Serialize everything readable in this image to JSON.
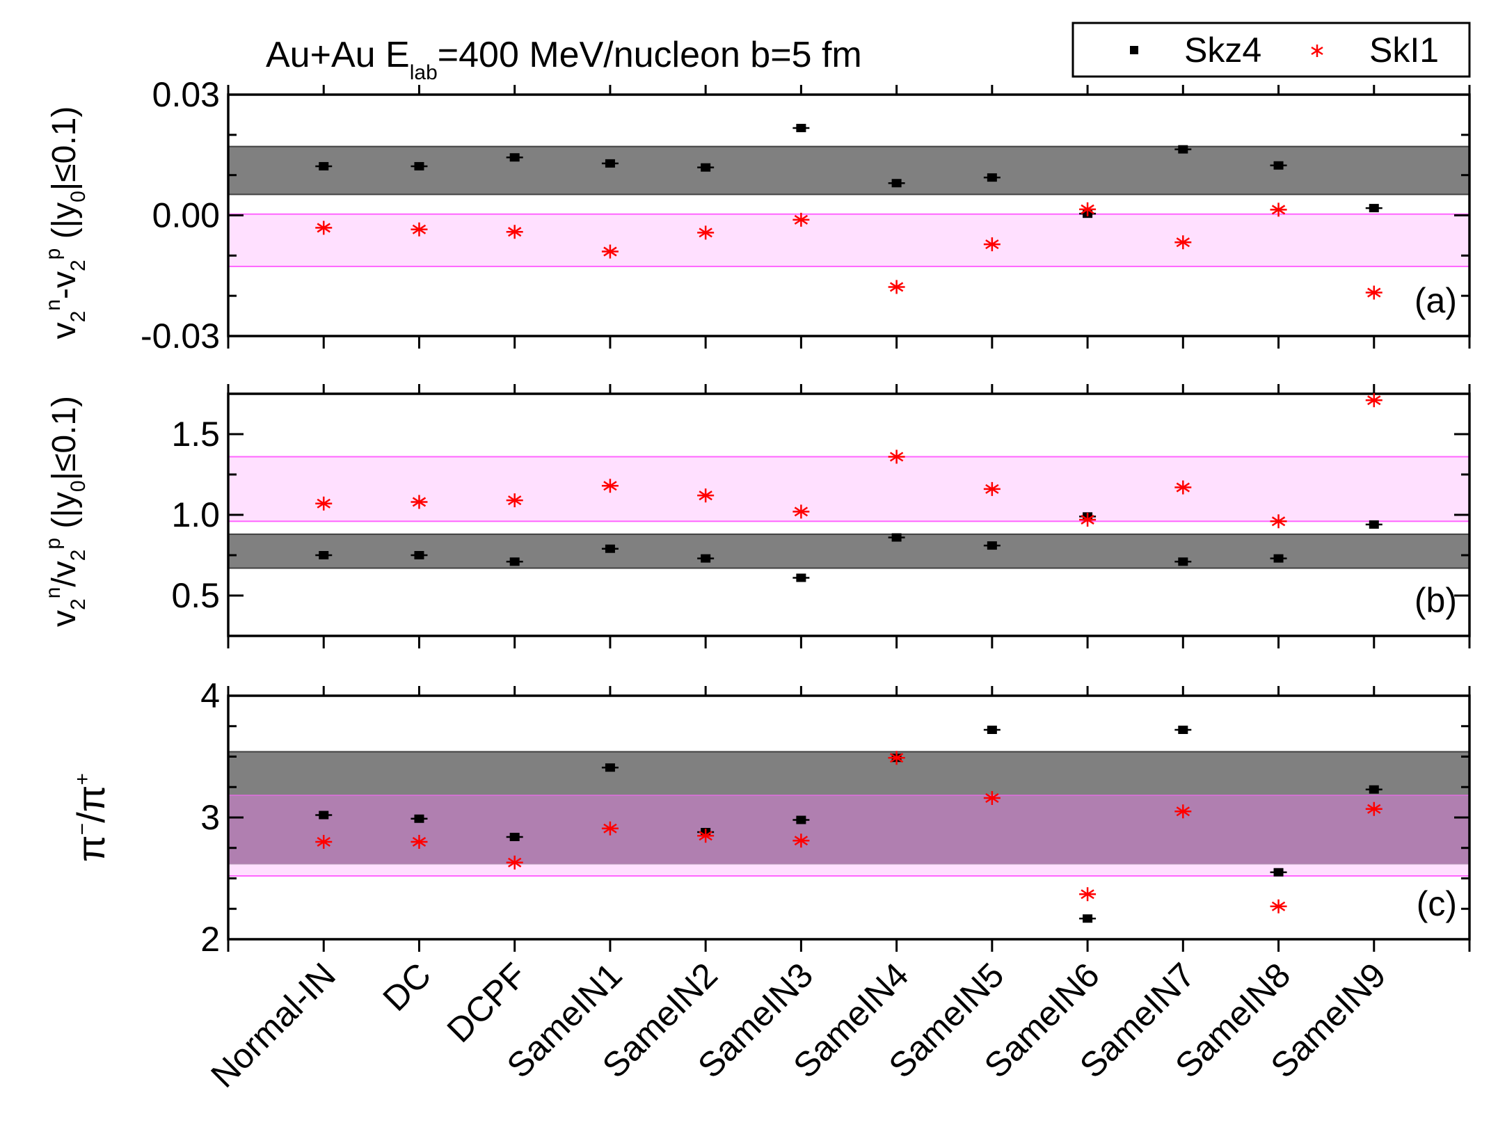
{
  "colors": {
    "skz4": "#000000",
    "skl1": "#ff0000",
    "band_gray": "#808080",
    "band_pink": "#ffccff",
    "band_pink_line": "#ff66ff",
    "band_overlap": "#b07fb0"
  },
  "chart_data": {
    "type": "scatter",
    "title": {
      "prefix": "Au+Au  E",
      "sub": "lab",
      "suffix": "=400 MeV/nucleon  b=5 fm"
    },
    "legend": {
      "placement": "top-right",
      "items": [
        {
          "name": "Skz4",
          "marker": "square",
          "color": "#000000"
        },
        {
          "name": "SkI1",
          "marker": "asterisk",
          "color": "#ff0000"
        }
      ]
    },
    "categories": [
      "Normal-IN",
      "DC",
      "DCPF",
      "SameIN1",
      "SameIN2",
      "SameIN3",
      "SameIN4",
      "SameIN5",
      "SameIN6",
      "SameIN7",
      "SameIN8",
      "SameIN9"
    ],
    "panels": [
      {
        "id": "a",
        "tag": "(a)",
        "ylabel": "v2n-v2p (|y0|≤0.1)",
        "ylabel_parts": {
          "v": "v",
          "sub2": "2",
          "supn": "n",
          "minus": "-v",
          "supp": "p",
          "rest1": " (|y",
          "sub0": "0",
          "rest2": "|≤0.1)"
        },
        "ylim": [
          -0.03,
          0.03
        ],
        "ticks": [
          -0.03,
          0.0,
          0.03
        ],
        "tick_labels": [
          "-0.03",
          "0.00",
          "0.03"
        ],
        "minor_step": 0.01,
        "bands": [
          {
            "series": "Skz4",
            "range": [
              0.0052,
              0.0171
            ],
            "color": "#808080"
          },
          {
            "series": "SkI1",
            "range": [
              -0.0127,
              0.0003
            ],
            "color": "#ffccff"
          }
        ],
        "series": [
          {
            "name": "Skz4",
            "values": [
              0.0122,
              0.0122,
              0.0144,
              0.0129,
              0.0119,
              0.0217,
              0.008,
              0.0094,
              0.0004,
              0.0164,
              0.0124,
              0.0018
            ]
          },
          {
            "name": "SkI1",
            "values": [
              -0.0031,
              -0.0035,
              -0.0041,
              -0.009,
              -0.0043,
              -0.0011,
              -0.0178,
              -0.0072,
              0.0015,
              -0.0067,
              0.0014,
              -0.0192
            ]
          }
        ]
      },
      {
        "id": "b",
        "tag": "(b)",
        "ylabel": "v2n/v2p (|y0|≤0.1)",
        "ylabel_parts": {
          "v": "v",
          "sub2": "2",
          "supn": "n",
          "minus": "/v",
          "supp": "p",
          "rest1": " (|y",
          "sub0": "0",
          "rest2": "|≤0.1)"
        },
        "ylim": [
          0.25,
          1.75
        ],
        "ticks": [
          0.5,
          1.0,
          1.5
        ],
        "tick_labels": [
          "0.5",
          "1.0",
          "1.5"
        ],
        "minor_step": 0.25,
        "bands": [
          {
            "series": "Skz4",
            "range": [
              0.67,
              0.88
            ],
            "color": "#808080"
          },
          {
            "series": "SkI1",
            "range": [
              0.96,
              1.36
            ],
            "color": "#ffccff"
          }
        ],
        "series": [
          {
            "name": "Skz4",
            "values": [
              0.75,
              0.75,
              0.71,
              0.79,
              0.73,
              0.61,
              0.86,
              0.81,
              0.99,
              0.71,
              0.73,
              0.94
            ]
          },
          {
            "name": "SkI1",
            "values": [
              1.07,
              1.08,
              1.09,
              1.18,
              1.12,
              1.02,
              1.36,
              1.16,
              0.97,
              1.17,
              0.96,
              1.71
            ]
          }
        ]
      },
      {
        "id": "c",
        "tag": "(c)",
        "ylabel": "π−/π+",
        "ylabel_parts": {
          "pi1": "π",
          "supm": "−",
          "slash": "/π",
          "supp": "+"
        },
        "ylim": [
          2.0,
          4.0
        ],
        "ticks": [
          2,
          3,
          4
        ],
        "tick_labels": [
          "2",
          "3",
          "4"
        ],
        "minor_step": 0.25,
        "bands": [
          {
            "series": "Skz4",
            "range": [
              2.62,
              3.54
            ],
            "color": "#808080"
          },
          {
            "series": "SkI1",
            "range": [
              2.52,
              3.18
            ],
            "color": "#ffccff"
          }
        ],
        "series": [
          {
            "name": "Skz4",
            "values": [
              3.02,
              2.99,
              2.84,
              3.41,
              2.88,
              2.98,
              3.49,
              3.72,
              2.17,
              3.72,
              2.55,
              3.23
            ]
          },
          {
            "name": "SkI1",
            "values": [
              2.8,
              2.8,
              2.63,
              2.91,
              2.85,
              2.81,
              3.49,
              3.16,
              2.37,
              3.05,
              2.27,
              3.07
            ]
          }
        ]
      }
    ]
  }
}
